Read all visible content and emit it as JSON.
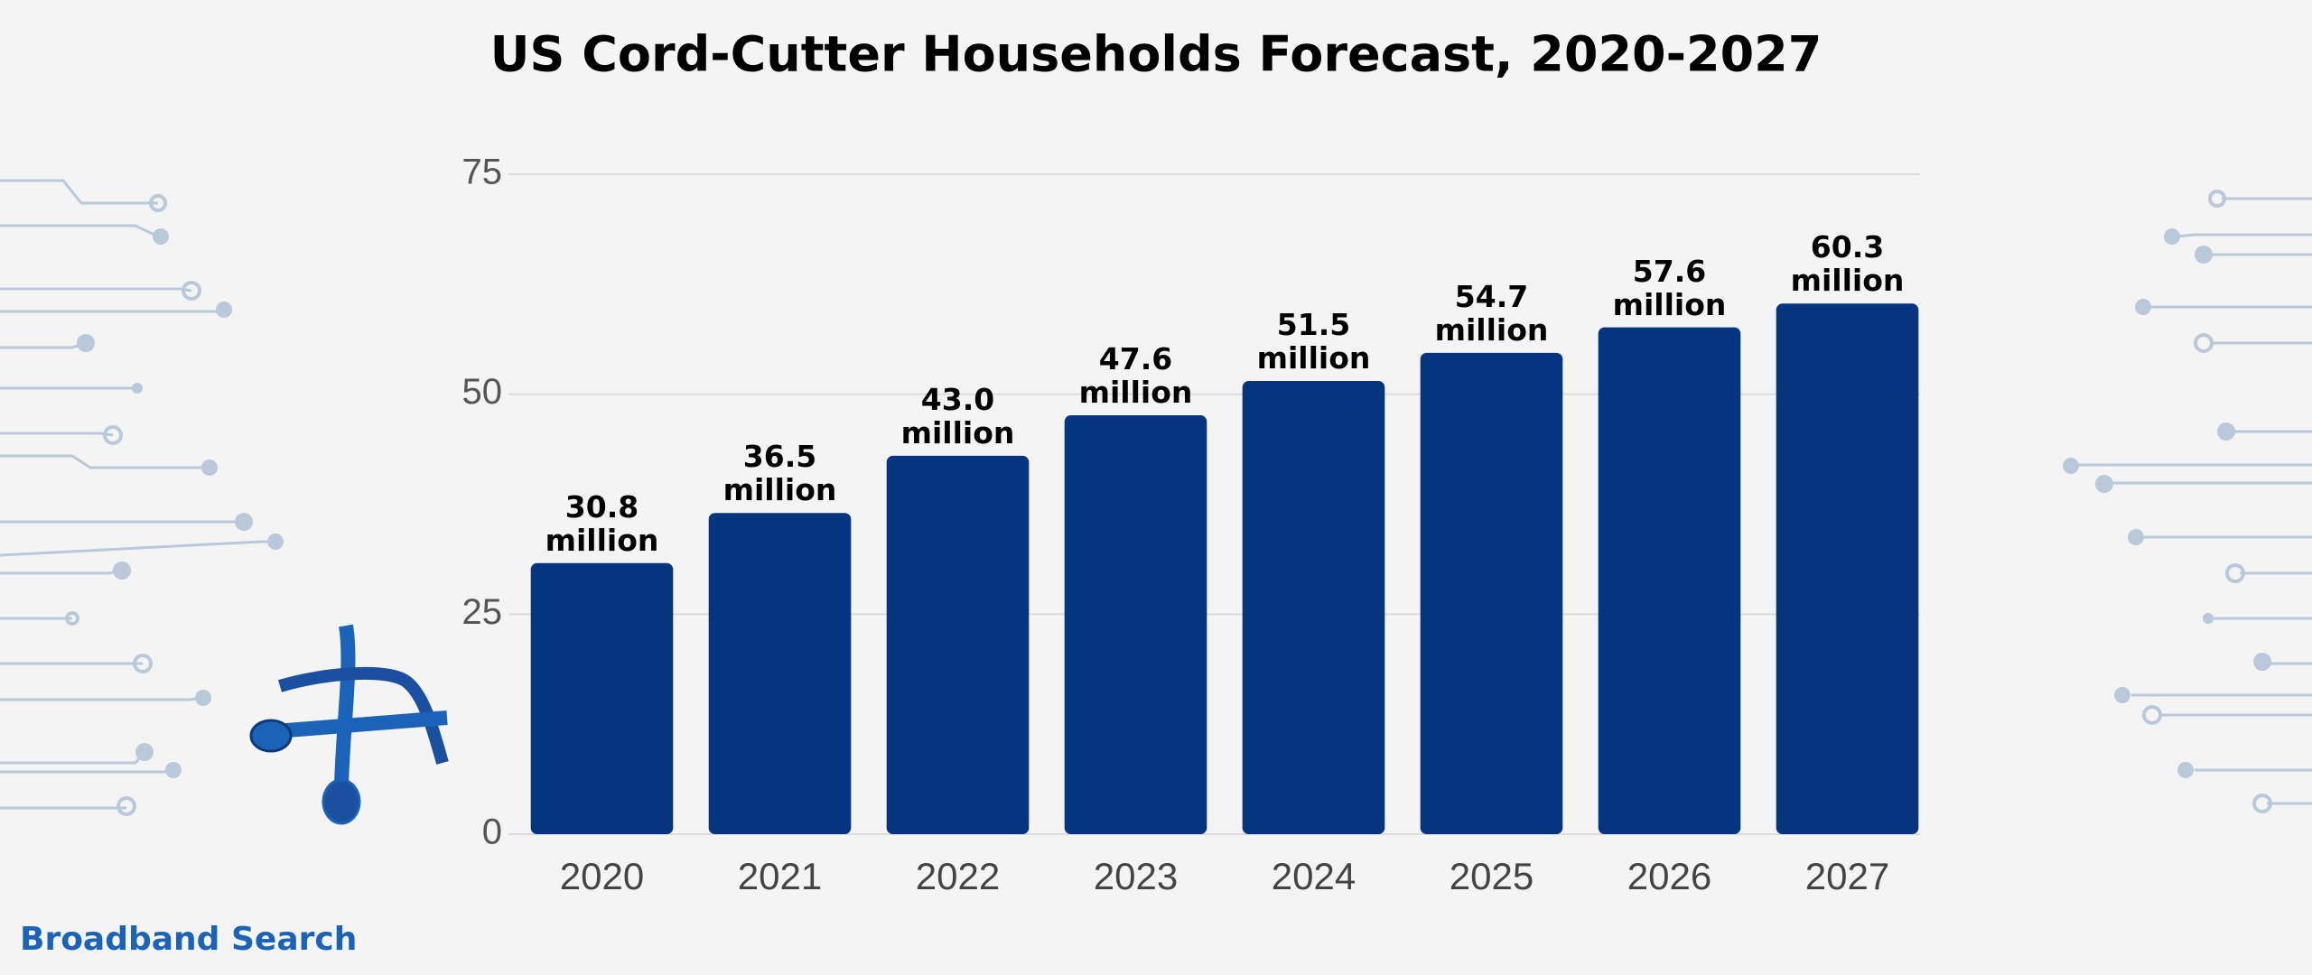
{
  "chart_data": {
    "type": "bar",
    "title": "US Cord-Cutter Households Forecast, 2020-2027",
    "categories": [
      "2020",
      "2021",
      "2022",
      "2023",
      "2024",
      "2025",
      "2026",
      "2027"
    ],
    "values": [
      30.8,
      36.5,
      43.0,
      47.6,
      51.5,
      54.7,
      57.6,
      60.3
    ],
    "value_labels": [
      "30.8 million",
      "36.5 million",
      "43.0 million",
      "47.6 million",
      "51.5 million",
      "54.7 million",
      "57.6 million",
      "60.3 million"
    ],
    "color": "#063580",
    "ylim": [
      0,
      75
    ],
    "yticks": [
      0,
      25,
      50,
      75
    ],
    "grid": true,
    "source": "Broadband Search"
  }
}
